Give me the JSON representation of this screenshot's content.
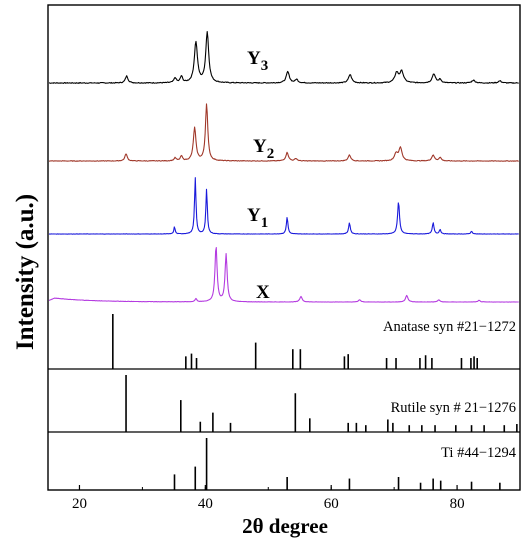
{
  "chart_data": {
    "type": "line",
    "xlabel": "2θ degree",
    "ylabel": "Intensity (a.u.)",
    "xlim": [
      15,
      90
    ],
    "x_ticks": [
      20,
      40,
      60,
      80
    ],
    "grid": false,
    "legend": "none",
    "series": [
      {
        "name": "Y3",
        "color": "#000000",
        "baseline": 0.0,
        "noise": 0.012,
        "peaks": [
          {
            "x": 27.5,
            "h": 0.1,
            "w": 0.25
          },
          {
            "x": 35.2,
            "h": 0.07,
            "w": 0.22
          },
          {
            "x": 36.2,
            "h": 0.09,
            "w": 0.22
          },
          {
            "x": 38.5,
            "h": 0.58,
            "w": 0.3
          },
          {
            "x": 40.3,
            "h": 0.72,
            "w": 0.28
          },
          {
            "x": 53.1,
            "h": 0.16,
            "w": 0.3
          },
          {
            "x": 54.5,
            "h": 0.05,
            "w": 0.25
          },
          {
            "x": 63.0,
            "h": 0.12,
            "w": 0.3
          },
          {
            "x": 70.4,
            "h": 0.14,
            "w": 0.35
          },
          {
            "x": 71.2,
            "h": 0.16,
            "w": 0.35
          },
          {
            "x": 76.3,
            "h": 0.13,
            "w": 0.3
          },
          {
            "x": 77.3,
            "h": 0.05,
            "w": 0.25
          },
          {
            "x": 82.6,
            "h": 0.04,
            "w": 0.3
          },
          {
            "x": 86.8,
            "h": 0.03,
            "w": 0.3
          }
        ]
      },
      {
        "name": "Y2",
        "color": "#a0382a",
        "baseline": 0.0,
        "noise": 0.01,
        "peaks": [
          {
            "x": 27.4,
            "h": 0.12,
            "w": 0.22
          },
          {
            "x": 35.2,
            "h": 0.05,
            "w": 0.2
          },
          {
            "x": 36.2,
            "h": 0.08,
            "w": 0.2
          },
          {
            "x": 38.3,
            "h": 0.55,
            "w": 0.25
          },
          {
            "x": 40.2,
            "h": 0.95,
            "w": 0.22
          },
          {
            "x": 53.0,
            "h": 0.14,
            "w": 0.25
          },
          {
            "x": 54.4,
            "h": 0.04,
            "w": 0.22
          },
          {
            "x": 62.9,
            "h": 0.1,
            "w": 0.25
          },
          {
            "x": 70.3,
            "h": 0.12,
            "w": 0.3
          },
          {
            "x": 71.0,
            "h": 0.22,
            "w": 0.3
          },
          {
            "x": 76.2,
            "h": 0.1,
            "w": 0.25
          },
          {
            "x": 77.3,
            "h": 0.06,
            "w": 0.22
          }
        ]
      },
      {
        "name": "Y1",
        "color": "#1a1adb",
        "baseline": 0.0,
        "noise": 0.006,
        "peaks": [
          {
            "x": 35.1,
            "h": 0.13,
            "w": 0.12
          },
          {
            "x": 38.4,
            "h": 1.0,
            "w": 0.14
          },
          {
            "x": 40.2,
            "h": 0.8,
            "w": 0.14
          },
          {
            "x": 53.0,
            "h": 0.3,
            "w": 0.15
          },
          {
            "x": 62.9,
            "h": 0.2,
            "w": 0.16
          },
          {
            "x": 70.7,
            "h": 0.58,
            "w": 0.18
          },
          {
            "x": 76.2,
            "h": 0.2,
            "w": 0.16
          },
          {
            "x": 77.3,
            "h": 0.08,
            "w": 0.15
          },
          {
            "x": 82.3,
            "h": 0.05,
            "w": 0.15
          }
        ]
      },
      {
        "name": "X",
        "color": "#b43be0",
        "baseline": 0.0,
        "noise": 0.005,
        "hump": {
          "x": 16.0,
          "h": 0.07,
          "decay": 6.0
        },
        "peaks": [
          {
            "x": 38.5,
            "h": 0.06,
            "w": 0.15
          },
          {
            "x": 41.7,
            "h": 1.0,
            "w": 0.2
          },
          {
            "x": 43.3,
            "h": 0.85,
            "w": 0.2
          },
          {
            "x": 55.2,
            "h": 0.1,
            "w": 0.22
          },
          {
            "x": 64.5,
            "h": 0.04,
            "w": 0.2
          },
          {
            "x": 72.0,
            "h": 0.12,
            "w": 0.22
          },
          {
            "x": 77.1,
            "h": 0.04,
            "w": 0.2
          },
          {
            "x": 83.5,
            "h": 0.03,
            "w": 0.2
          }
        ]
      }
    ],
    "series_labels": [
      {
        "letter": "Y",
        "sub": "3"
      },
      {
        "letter": "Y",
        "sub": "2"
      },
      {
        "letter": "Y",
        "sub": "1"
      },
      {
        "letter": "X",
        "sub": ""
      }
    ],
    "references": [
      {
        "label": "Anatase syn #21−1272",
        "sticks": [
          {
            "x": 25.3,
            "h": 1.0
          },
          {
            "x": 36.9,
            "h": 0.23
          },
          {
            "x": 37.8,
            "h": 0.28
          },
          {
            "x": 38.6,
            "h": 0.2
          },
          {
            "x": 48.0,
            "h": 0.48
          },
          {
            "x": 53.9,
            "h": 0.36
          },
          {
            "x": 55.1,
            "h": 0.36
          },
          {
            "x": 62.1,
            "h": 0.23
          },
          {
            "x": 62.7,
            "h": 0.27
          },
          {
            "x": 68.8,
            "h": 0.2
          },
          {
            "x": 70.3,
            "h": 0.2
          },
          {
            "x": 74.1,
            "h": 0.2
          },
          {
            "x": 75.0,
            "h": 0.25
          },
          {
            "x": 76.0,
            "h": 0.2
          },
          {
            "x": 80.7,
            "h": 0.2
          },
          {
            "x": 82.2,
            "h": 0.2
          },
          {
            "x": 82.7,
            "h": 0.23
          },
          {
            "x": 83.2,
            "h": 0.2
          }
        ]
      },
      {
        "label": "Rutile syn # 21−1276",
        "sticks": [
          {
            "x": 27.4,
            "h": 1.0
          },
          {
            "x": 36.1,
            "h": 0.56
          },
          {
            "x": 39.2,
            "h": 0.18
          },
          {
            "x": 41.2,
            "h": 0.34
          },
          {
            "x": 44.0,
            "h": 0.16
          },
          {
            "x": 54.3,
            "h": 0.68
          },
          {
            "x": 56.6,
            "h": 0.24
          },
          {
            "x": 62.7,
            "h": 0.16
          },
          {
            "x": 64.0,
            "h": 0.16
          },
          {
            "x": 65.5,
            "h": 0.12
          },
          {
            "x": 69.0,
            "h": 0.22
          },
          {
            "x": 69.8,
            "h": 0.16
          },
          {
            "x": 72.4,
            "h": 0.12
          },
          {
            "x": 74.4,
            "h": 0.12
          },
          {
            "x": 76.5,
            "h": 0.12
          },
          {
            "x": 79.8,
            "h": 0.12
          },
          {
            "x": 82.3,
            "h": 0.12
          },
          {
            "x": 84.3,
            "h": 0.12
          },
          {
            "x": 87.5,
            "h": 0.12
          },
          {
            "x": 89.5,
            "h": 0.14
          }
        ]
      },
      {
        "label": "Ti #44−1294",
        "sticks": [
          {
            "x": 35.1,
            "h": 0.3
          },
          {
            "x": 38.4,
            "h": 0.45
          },
          {
            "x": 40.2,
            "h": 1.0
          },
          {
            "x": 53.0,
            "h": 0.25
          },
          {
            "x": 62.9,
            "h": 0.22
          },
          {
            "x": 70.7,
            "h": 0.25
          },
          {
            "x": 74.2,
            "h": 0.14
          },
          {
            "x": 76.2,
            "h": 0.22
          },
          {
            "x": 77.4,
            "h": 0.18
          },
          {
            "x": 82.3,
            "h": 0.16
          },
          {
            "x": 86.8,
            "h": 0.14
          }
        ]
      }
    ]
  }
}
